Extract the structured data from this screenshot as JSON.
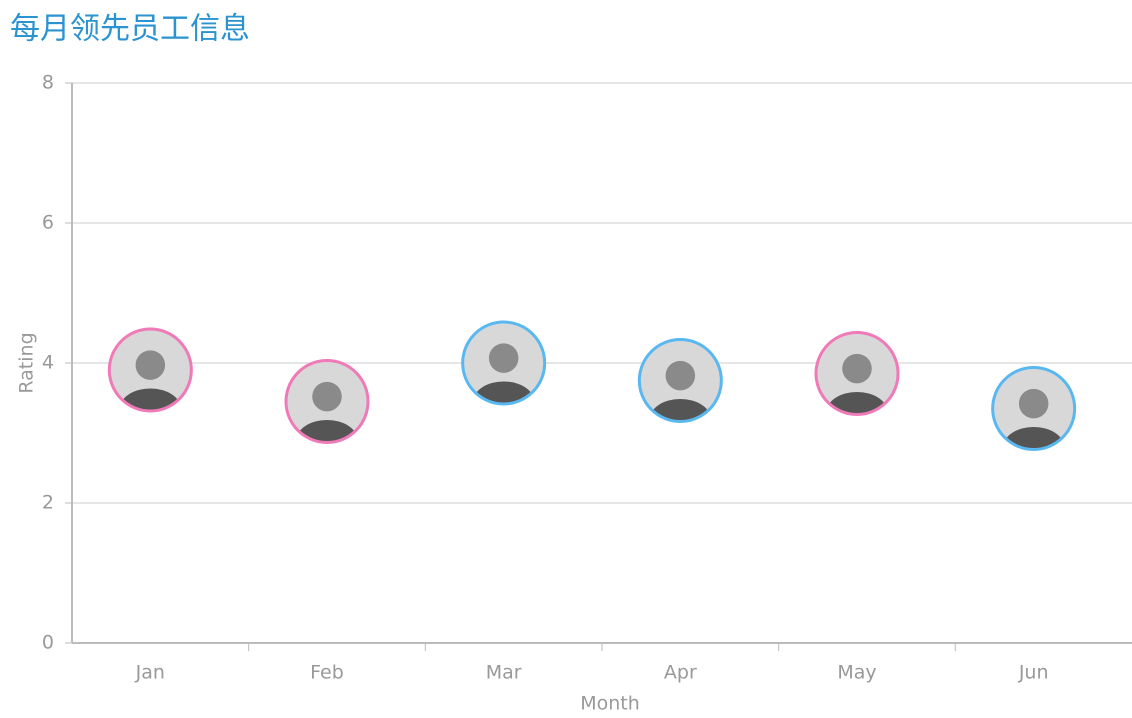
{
  "chart_data": {
    "type": "scatter",
    "title": "每月领先员工信息",
    "categories": [
      "Jan",
      "Feb",
      "Mar",
      "Apr",
      "May",
      "Jun"
    ],
    "values": [
      3.9,
      3.45,
      4.0,
      3.75,
      3.85,
      3.35
    ],
    "colors": [
      "#f07ab8",
      "#f07ab8",
      "#5ab8f0",
      "#5ab8f0",
      "#f07ab8",
      "#5ab8f0"
    ],
    "x_label": "Month",
    "y_label": "Rating",
    "ylim": [
      0,
      8
    ],
    "yticks": [
      0,
      2,
      4,
      6,
      8
    ],
    "grid": true
  }
}
